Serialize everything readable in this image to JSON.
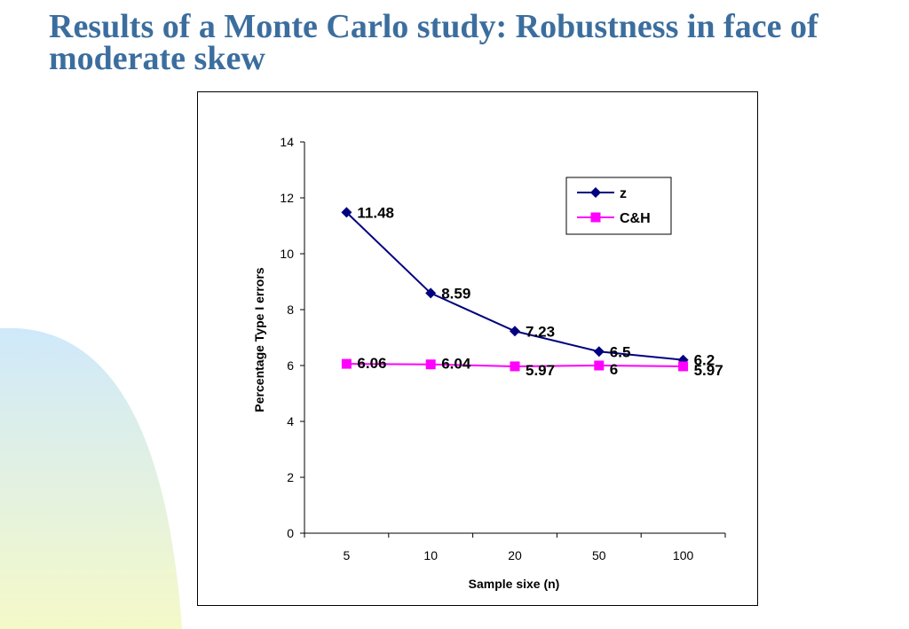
{
  "slide": {
    "title": "Results of a Monte Carlo study: Robustness in face of moderate skew"
  },
  "colors": {
    "title": "#3b6e9e",
    "decor_gradient_top": "#cfe9fb",
    "decor_gradient_bottom": "#f5f9c8"
  },
  "chart_data": {
    "type": "line",
    "xlabel": "Sample sixe (n)",
    "ylabel": "Percentage Type I errors",
    "categories": [
      "5",
      "10",
      "20",
      "50",
      "100"
    ],
    "ylim": [
      0,
      14
    ],
    "yticks": [
      0,
      2,
      4,
      6,
      8,
      10,
      12,
      14
    ],
    "grid": false,
    "legend_position": "top-right",
    "series": [
      {
        "name": "z",
        "color": "#000080",
        "marker": "diamond",
        "values": [
          11.48,
          8.59,
          7.23,
          6.5,
          6.2
        ],
        "labels": [
          "11.48",
          "8.59",
          "7.23",
          "6.5",
          "6.2"
        ]
      },
      {
        "name": "C&H",
        "color": "#ff00ff",
        "marker": "square",
        "values": [
          6.06,
          6.04,
          5.97,
          6,
          5.97
        ],
        "labels": [
          "6.06",
          "6.04",
          "5.97",
          "6",
          "5.97"
        ]
      }
    ]
  }
}
